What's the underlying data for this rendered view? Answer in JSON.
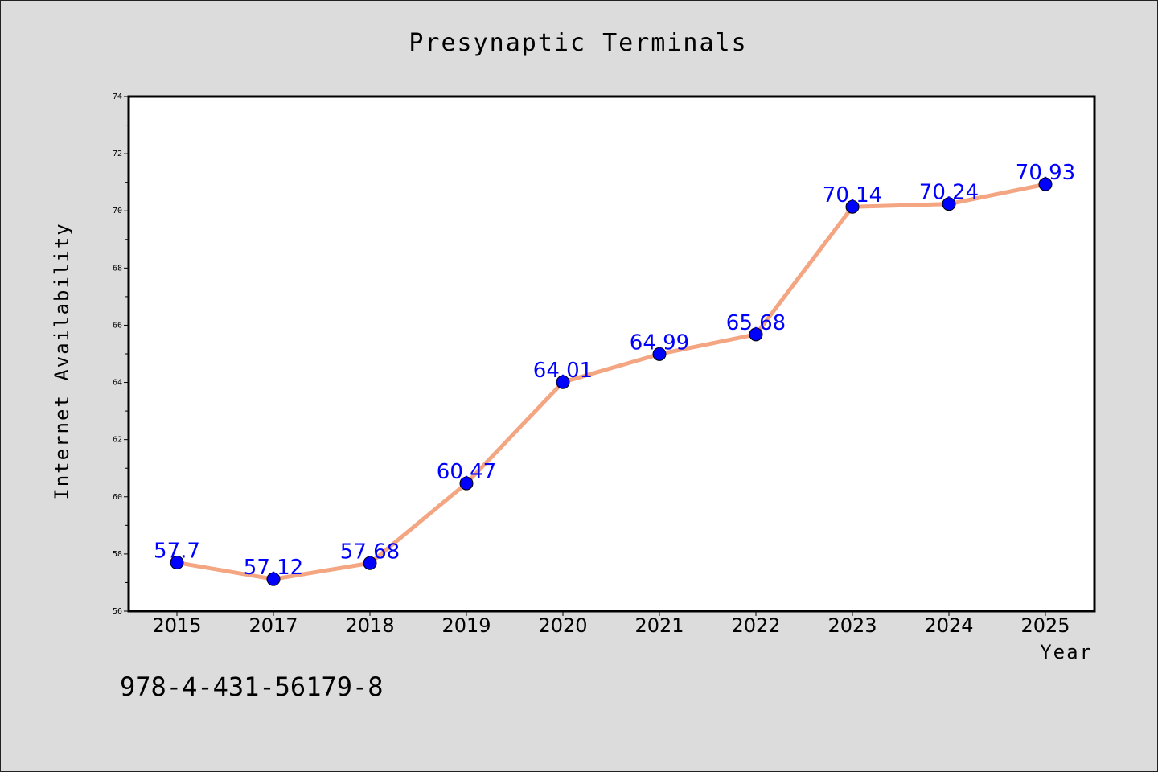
{
  "chart_data": {
    "type": "line",
    "title": "Presynaptic Terminals",
    "xlabel": "Year",
    "ylabel": "Internet Availability",
    "categories": [
      "2015",
      "2017",
      "2018",
      "2019",
      "2020",
      "2021",
      "2022",
      "2023",
      "2024",
      "2025"
    ],
    "series": [
      {
        "values": [
          57.7,
          57.12,
          57.68,
          60.47,
          64.01,
          64.99,
          65.68,
          70.14,
          70.24,
          70.93
        ],
        "labels": [
          "57.7",
          "57.12",
          "57.68",
          "60.47",
          "64.01",
          "64.99",
          "65.68",
          "70.14",
          "70.24",
          "70.93"
        ]
      }
    ],
    "ylim": [
      56,
      74
    ],
    "yticks": [
      56,
      58,
      60,
      62,
      64,
      66,
      68,
      70,
      72,
      74
    ],
    "ytick_labels": [
      "56",
      "58",
      "60",
      "62",
      "64",
      "66",
      "68",
      "70",
      "72",
      "74"
    ],
    "grid": false,
    "line_color": "#f4a582",
    "marker_color": "#0000ff",
    "label_color": "#0000ff",
    "background_color": "#dcdcdc",
    "plot_background": "#ffffff"
  },
  "footer": {
    "code": "978-4-431-56179-8"
  }
}
